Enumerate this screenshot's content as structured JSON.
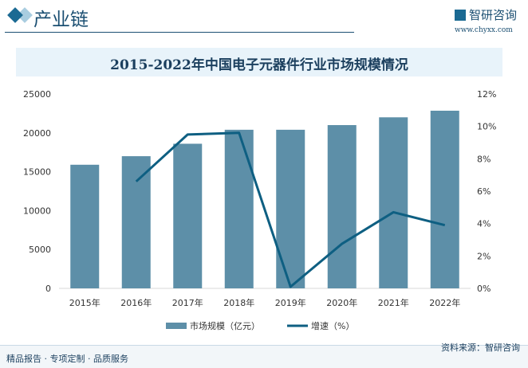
{
  "header": {
    "title": "产业链",
    "logo_text": "智研咨询",
    "url": "www.chyxx.com"
  },
  "footer": {
    "left": "精品报告 · 专项定制 · 品质服务",
    "source": "资料来源：智研咨询"
  },
  "colors": {
    "bar": "#5d8fa8",
    "line": "#0e5f82",
    "accent": "#1b4f72"
  },
  "chart_data": {
    "type": "bar+line",
    "title": "2015-2022年中国电子元器件行业市场规模情况",
    "categories": [
      "2015年",
      "2016年",
      "2017年",
      "2018年",
      "2019年",
      "2020年",
      "2021年",
      "2022年"
    ],
    "series": [
      {
        "name": "市场规模（亿元）",
        "type": "bar",
        "axis": "left",
        "values": [
          15900,
          17000,
          18600,
          20400,
          20400,
          21000,
          22000,
          22850
        ]
      },
      {
        "name": "增速（%）",
        "type": "line",
        "axis": "right",
        "values": [
          null,
          6.6,
          9.5,
          9.6,
          0.1,
          2.75,
          4.7,
          3.9
        ]
      }
    ],
    "y_left": {
      "range": [
        0,
        25000
      ],
      "ticks": [
        "0",
        "5000",
        "10000",
        "15000",
        "20000",
        "25000"
      ]
    },
    "y_right": {
      "range": [
        0,
        12
      ],
      "ticks": [
        "0%",
        "2%",
        "4%",
        "6%",
        "8%",
        "10%",
        "12%"
      ]
    },
    "legend": "bottom",
    "grid": false
  }
}
